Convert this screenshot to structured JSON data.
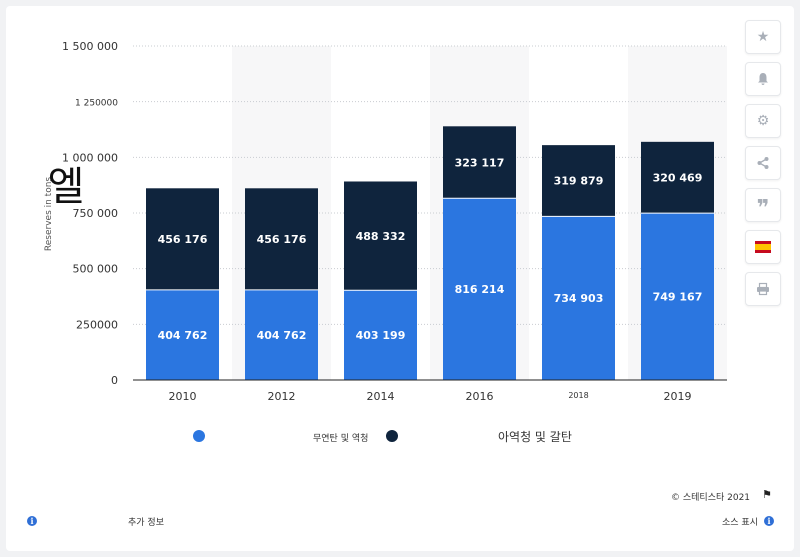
{
  "chart_data": {
    "type": "bar",
    "stacked": true,
    "categories": [
      "2010",
      "2012",
      "2014",
      "2016",
      "2018",
      "2019"
    ],
    "series": [
      {
        "name": "무연탄 및 역청",
        "color": "#2b76e0",
        "values": [
          404762,
          404762,
          403199,
          816214,
          734903,
          749167
        ]
      },
      {
        "name": "아역청 및 갈탄",
        "color": "#0f243d",
        "values": [
          456176,
          456176,
          488332,
          323117,
          319879,
          320469
        ]
      }
    ],
    "value_labels": {
      "bottom": [
        "404 762",
        "404 762",
        "403 199",
        "816 214",
        "734 903",
        "749 167"
      ],
      "top": [
        "456 176",
        "456 176",
        "488 332",
        "323 117",
        "319 879",
        "320 469"
      ]
    },
    "y_ticks": [
      {
        "value": 0,
        "label": "0"
      },
      {
        "value": 250000,
        "label": "250000"
      },
      {
        "value": 500000,
        "label": "500 000"
      },
      {
        "value": 750000,
        "label": "750 000"
      },
      {
        "value": 1000000,
        "label": "1 000 000"
      },
      {
        "value": 1250000,
        "label": "1 250000"
      },
      {
        "value": 1500000,
        "label": "1 500 000"
      }
    ],
    "ylim": [
      0,
      1500000
    ],
    "ylabel": "Reserves in tons",
    "ylabel_overlay_glyph": "엘",
    "grid": true,
    "legend_position": "bottom"
  },
  "legend": {
    "items": [
      {
        "label": "",
        "color": "#2b76e0"
      },
      {
        "label": "무연탄 및 역청",
        "color": "#0f243d"
      },
      {
        "label": "아역청 및 갈탄"
      }
    ]
  },
  "sidebar": {
    "icons": [
      "star-icon",
      "bell-icon",
      "gear-icon",
      "share-icon",
      "quote-icon",
      "spain-flag-icon",
      "print-icon"
    ]
  },
  "footer": {
    "copyright": "© 스테티스타 2021",
    "more_info": "추가 정보",
    "show_source": "소스 표시"
  }
}
